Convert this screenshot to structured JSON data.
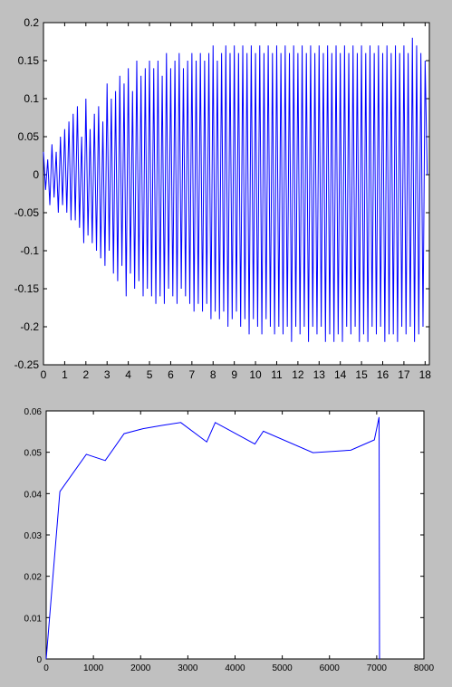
{
  "chart_data": [
    {
      "type": "line",
      "title": "",
      "xlabel": "",
      "ylabel": "",
      "xlim": [
        0,
        18.2
      ],
      "ylim": [
        -0.25,
        0.2
      ],
      "xticks": [
        0,
        1,
        2,
        3,
        4,
        5,
        6,
        7,
        8,
        9,
        10,
        11,
        12,
        13,
        14,
        15,
        16,
        17,
        18
      ],
      "yticks": [
        -0.25,
        -0.2,
        -0.15,
        -0.1,
        -0.05,
        0,
        0.05,
        0.1,
        0.15,
        0.2
      ],
      "xtick_labels": [
        "0",
        "1",
        "2",
        "3",
        "4",
        "5",
        "6",
        "7",
        "8",
        "9",
        "10",
        "11",
        "12",
        "13",
        "14",
        "15",
        "16",
        "17",
        "18"
      ],
      "ytick_labels": [
        "-0.25",
        "-0.2",
        "-0.15",
        "-0.1",
        "-0.05",
        "0",
        "0.05",
        "0.1",
        "0.15",
        "0.2"
      ],
      "grid": false,
      "series_color": "#0000ff",
      "series": [
        {
          "x": [
            0,
            0.1,
            0.2,
            0.3,
            0.4,
            0.5,
            0.6,
            0.7,
            0.8,
            0.9,
            1.0,
            1.1,
            1.2,
            1.3,
            1.4,
            1.5,
            1.6,
            1.7,
            1.8,
            1.9,
            2.0,
            2.1,
            2.2,
            2.3,
            2.4,
            2.5,
            2.6,
            2.7,
            2.8,
            2.9,
            3.0,
            3.1,
            3.2,
            3.3,
            3.4,
            3.5,
            3.6,
            3.7,
            3.8,
            3.9,
            4.0,
            4.1,
            4.2,
            4.3,
            4.4,
            4.5,
            4.6,
            4.7,
            4.8,
            4.9,
            5.0,
            5.1,
            5.2,
            5.3,
            5.4,
            5.5,
            5.6,
            5.7,
            5.8,
            5.9,
            6.0,
            6.1,
            6.2,
            6.3,
            6.4,
            6.5,
            6.6,
            6.7,
            6.8,
            6.9,
            7.0,
            7.1,
            7.2,
            7.3,
            7.4,
            7.5,
            7.6,
            7.7,
            7.8,
            7.9,
            8.0,
            8.1,
            8.2,
            8.3,
            8.4,
            8.5,
            8.6,
            8.7,
            8.8,
            8.9,
            9.0,
            9.1,
            9.2,
            9.3,
            9.4,
            9.5,
            9.6,
            9.7,
            9.8,
            9.9,
            10.0,
            10.1,
            10.2,
            10.3,
            10.4,
            10.5,
            10.6,
            10.7,
            10.8,
            10.9,
            11.0,
            11.1,
            11.2,
            11.3,
            11.4,
            11.5,
            11.6,
            11.7,
            11.8,
            11.9,
            12.0,
            12.1,
            12.2,
            12.3,
            12.4,
            12.5,
            12.6,
            12.7,
            12.8,
            12.9,
            13.0,
            13.1,
            13.2,
            13.3,
            13.4,
            13.5,
            13.6,
            13.7,
            13.8,
            13.9,
            14.0,
            14.1,
            14.2,
            14.3,
            14.4,
            14.5,
            14.6,
            14.7,
            14.8,
            14.9,
            15.0,
            15.1,
            15.2,
            15.3,
            15.4,
            15.5,
            15.6,
            15.7,
            15.8,
            15.9,
            16.0,
            16.1,
            16.2,
            16.3,
            16.4,
            16.5,
            16.6,
            16.7,
            16.8,
            16.9,
            17.0,
            17.1,
            17.2,
            17.3,
            17.4,
            17.5,
            17.6,
            17.7,
            17.8,
            17.9,
            18.0,
            18.1
          ],
          "y": [
            0.03,
            -0.02,
            0.02,
            -0.04,
            0.04,
            -0.03,
            0.03,
            -0.05,
            0.05,
            -0.04,
            0.06,
            -0.05,
            0.07,
            -0.06,
            0.08,
            -0.06,
            0.09,
            -0.07,
            0.05,
            -0.09,
            0.1,
            -0.08,
            0.06,
            -0.09,
            0.08,
            -0.1,
            0.09,
            -0.11,
            0.07,
            -0.12,
            0.12,
            -0.1,
            0.1,
            -0.13,
            0.11,
            -0.14,
            0.13,
            -0.12,
            0.12,
            -0.16,
            0.14,
            -0.13,
            0.11,
            -0.15,
            0.15,
            -0.14,
            0.13,
            -0.16,
            0.14,
            -0.15,
            0.15,
            -0.16,
            0.14,
            -0.17,
            0.15,
            -0.16,
            0.13,
            -0.17,
            0.16,
            -0.15,
            0.14,
            -0.16,
            0.15,
            -0.17,
            0.16,
            -0.15,
            0.14,
            -0.16,
            0.15,
            -0.17,
            0.16,
            -0.18,
            0.15,
            -0.17,
            0.16,
            -0.18,
            0.15,
            -0.17,
            0.16,
            -0.19,
            0.17,
            -0.18,
            0.15,
            -0.19,
            0.16,
            -0.18,
            0.17,
            -0.2,
            0.16,
            -0.19,
            0.17,
            -0.18,
            0.16,
            -0.2,
            0.17,
            -0.19,
            0.16,
            -0.21,
            0.17,
            -0.19,
            0.16,
            -0.2,
            0.17,
            -0.21,
            0.16,
            -0.19,
            0.17,
            -0.2,
            0.16,
            -0.21,
            0.17,
            -0.2,
            0.16,
            -0.21,
            0.17,
            -0.2,
            0.16,
            -0.22,
            0.17,
            -0.2,
            0.16,
            -0.21,
            0.17,
            -0.2,
            0.16,
            -0.22,
            0.17,
            -0.2,
            0.16,
            -0.21,
            0.17,
            -0.2,
            0.16,
            -0.22,
            0.17,
            -0.21,
            0.16,
            -0.22,
            0.17,
            -0.21,
            0.16,
            -0.22,
            0.17,
            -0.2,
            0.16,
            -0.21,
            0.17,
            -0.2,
            0.16,
            -0.22,
            0.17,
            -0.21,
            0.16,
            -0.22,
            0.17,
            -0.2,
            0.16,
            -0.21,
            0.17,
            -0.2,
            0.16,
            -0.22,
            0.17,
            -0.21,
            0.16,
            -0.21,
            0.17,
            -0.22,
            0.16,
            -0.2,
            0.17,
            -0.21,
            0.16,
            -0.2,
            0.18,
            -0.22,
            0.17,
            -0.21,
            0.16,
            -0.2,
            0.15,
            0.0
          ]
        }
      ]
    },
    {
      "type": "line",
      "title": "",
      "xlabel": "",
      "ylabel": "",
      "xlim": [
        0,
        8000
      ],
      "ylim": [
        0,
        0.06
      ],
      "xticks": [
        0,
        1000,
        2000,
        3000,
        4000,
        5000,
        6000,
        7000,
        8000
      ],
      "yticks": [
        0,
        0.01,
        0.02,
        0.03,
        0.04,
        0.05,
        0.06
      ],
      "xtick_labels": [
        "0",
        "1000",
        "2000",
        "3000",
        "4000",
        "5000",
        "6000",
        "7000",
        "8000"
      ],
      "ytick_labels": [
        "0",
        "0.01",
        "0.02",
        "0.03",
        "0.04",
        "0.05",
        "0.06"
      ],
      "grid": false,
      "series_color": "#0000ff",
      "series": [
        {
          "x": [
            0,
            290,
            850,
            1250,
            1650,
            2050,
            2450,
            2850,
            3400,
            3580,
            4420,
            4600,
            5650,
            6450,
            6950,
            7050,
            7060
          ],
          "y": [
            0,
            0.0405,
            0.0495,
            0.048,
            0.0545,
            0.0557,
            0.0565,
            0.0572,
            0.0525,
            0.0572,
            0.052,
            0.0551,
            0.0499,
            0.0505,
            0.053,
            0.0585,
            0
          ]
        }
      ]
    }
  ]
}
